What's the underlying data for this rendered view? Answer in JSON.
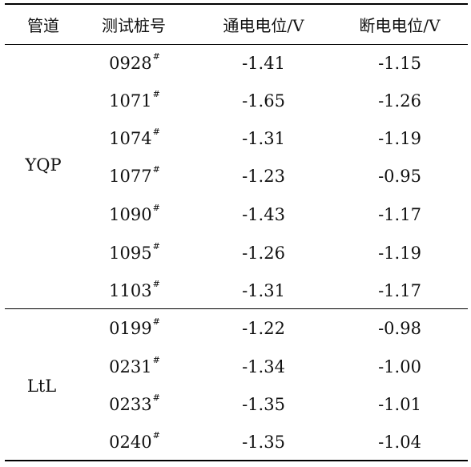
{
  "columns": [
    "管道",
    "测试桩号",
    "通电电位/V",
    "断电电位/V"
  ],
  "groups": [
    {
      "pipeline": "YQP",
      "rows": [
        {
          "stake": "0928",
          "mark": "#",
          "on": "-1.41",
          "off": "-1.15"
        },
        {
          "stake": "1071",
          "mark": "#",
          "on": "-1.65",
          "off": "-1.26"
        },
        {
          "stake": "1074",
          "mark": "#",
          "on": "-1.31",
          "off": "-1.19"
        },
        {
          "stake": "1077",
          "mark": "#",
          "on": "-1.23",
          "off": "-0.95"
        },
        {
          "stake": "1090",
          "mark": "#",
          "on": "-1.43",
          "off": "-1.17"
        },
        {
          "stake": "1095",
          "mark": "#",
          "on": "-1.26",
          "off": "-1.19"
        },
        {
          "stake": "1103",
          "mark": "#",
          "on": "-1.31",
          "off": "-1.17"
        }
      ]
    },
    {
      "pipeline": "LtL",
      "rows": [
        {
          "stake": "0199",
          "mark": "#",
          "on": "-1.22",
          "off": "-0.98"
        },
        {
          "stake": "0231",
          "mark": "#",
          "on": "-1.34",
          "off": "-1.00"
        },
        {
          "stake": "0233",
          "mark": "#",
          "on": "-1.35",
          "off": "-1.01"
        },
        {
          "stake": "0240",
          "mark": "#",
          "on": "-1.35",
          "off": "-1.04"
        }
      ]
    }
  ]
}
